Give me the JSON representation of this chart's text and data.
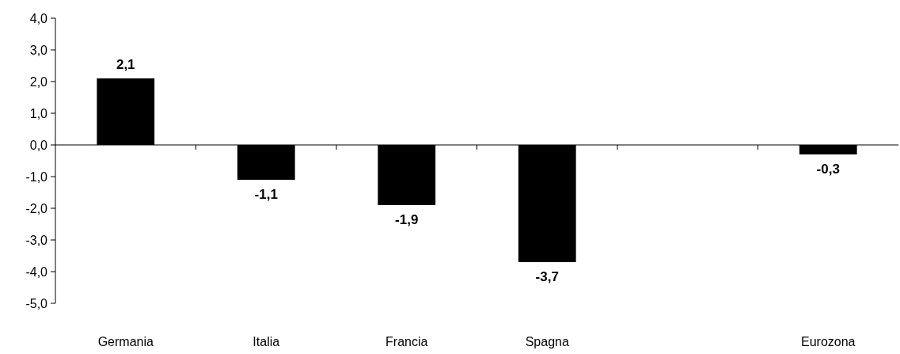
{
  "chart_data": {
    "type": "bar",
    "categories": [
      "Germania",
      "Italia",
      "Francia",
      "Spagna",
      null,
      "Eurozona"
    ],
    "values": [
      2.1,
      -1.1,
      -1.9,
      -3.7,
      null,
      -0.3
    ],
    "value_labels": [
      "2,1",
      "-1,1",
      "-1,9",
      "-3,7",
      null,
      "-0,3"
    ],
    "color": "#000000",
    "ylim": [
      -5,
      4
    ],
    "yticks": [
      {
        "value": -5,
        "label": "-5,0"
      },
      {
        "value": -4,
        "label": "-4,0"
      },
      {
        "value": -3,
        "label": "-3,0"
      },
      {
        "value": -2,
        "label": "-2,0"
      },
      {
        "value": -1,
        "label": "-1,0"
      },
      {
        "value": 0,
        "label": "0,0"
      },
      {
        "value": 1,
        "label": "1,0"
      },
      {
        "value": 2,
        "label": "2,0"
      },
      {
        "value": 3,
        "label": "3,0"
      },
      {
        "value": 4,
        "label": "4,0"
      }
    ],
    "legend": false
  }
}
